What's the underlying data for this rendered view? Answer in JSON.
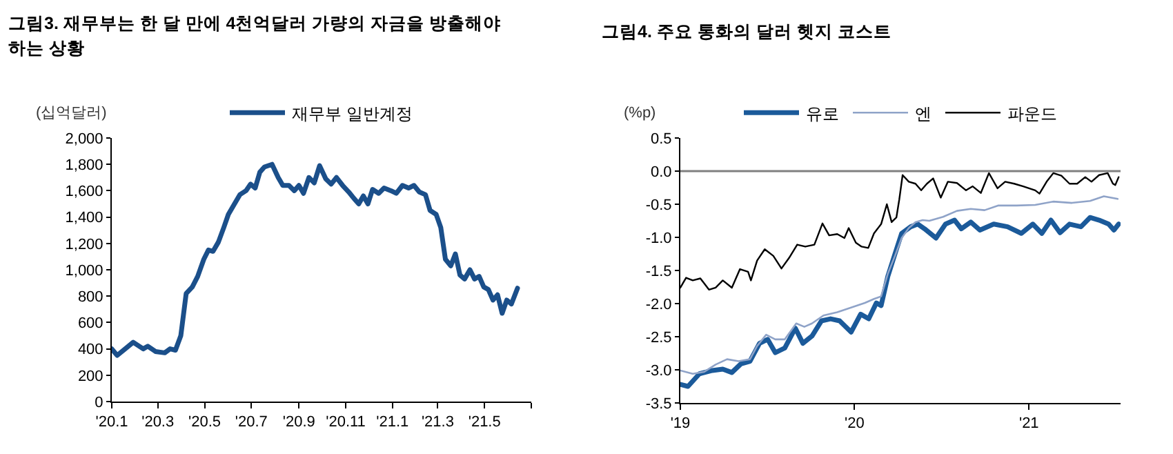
{
  "chart_data": [
    {
      "type": "line",
      "title": "그림3. 재무부는 한 달 만에 4천억달러 가량의 자금을 방출해야 하는 상황",
      "ylabel": "(십억달러)",
      "legend": "top",
      "grid": false,
      "marker": "none",
      "line_style": "solid",
      "xlim": [
        "2020-01-01",
        "2021-07-01"
      ],
      "xticks": [
        {
          "value": "2020-01-01",
          "label": "'20.1"
        },
        {
          "value": "2020-03-01",
          "label": "'20.3"
        },
        {
          "value": "2020-05-01",
          "label": "'20.5"
        },
        {
          "value": "2020-07-01",
          "label": "'20.7"
        },
        {
          "value": "2020-09-01",
          "label": "'20.9"
        },
        {
          "value": "2020-11-01",
          "label": "'20.11"
        },
        {
          "value": "2021-01-01",
          "label": "'21.1"
        },
        {
          "value": "2021-03-01",
          "label": "'21.3"
        },
        {
          "value": "2021-05-01",
          "label": "'21.5"
        },
        {
          "value": "2021-07-01",
          "label": null
        }
      ],
      "ylim": [
        0,
        2000
      ],
      "yticks": [
        0,
        200,
        400,
        600,
        800,
        {
          "value": 1000,
          "label": "1,000"
        },
        {
          "value": 1200,
          "label": "1,200"
        },
        {
          "value": 1400,
          "label": "1,400"
        },
        {
          "value": 1600,
          "label": "1,600"
        },
        {
          "value": 1800,
          "label": "1,800"
        },
        {
          "value": 2000,
          "label": "2,000"
        }
      ],
      "series": [
        {
          "name": "재무부 일반계정",
          "color": "#1b4f8a",
          "x": [
            "2020-01-01",
            "2020-01-08",
            "2020-01-29",
            "2020-02-11",
            "2020-02-17",
            "2020-02-27",
            "2020-03-10",
            "2020-03-17",
            "2020-03-24",
            "2020-03-31",
            "2020-04-07",
            "2020-04-15",
            "2020-04-22",
            "2020-04-30",
            "2020-05-06",
            "2020-05-12",
            "2020-05-19",
            "2020-05-26",
            "2020-06-01",
            "2020-06-09",
            "2020-06-16",
            "2020-06-24",
            "2020-06-30",
            "2020-07-06",
            "2020-07-12",
            "2020-07-18",
            "2020-07-28",
            "2020-08-05",
            "2020-08-11",
            "2020-08-19",
            "2020-08-26",
            "2020-09-01",
            "2020-09-07",
            "2020-09-14",
            "2020-09-21",
            "2020-09-28",
            "2020-10-06",
            "2020-10-13",
            "2020-10-20",
            "2020-10-28",
            "2020-11-05",
            "2020-11-12",
            "2020-11-18",
            "2020-11-24",
            "2020-11-30",
            "2020-12-06",
            "2020-12-14",
            "2020-12-21",
            "2020-12-30",
            "2021-01-06",
            "2021-01-14",
            "2021-01-22",
            "2021-01-29",
            "2021-02-05",
            "2021-02-13",
            "2021-02-19",
            "2021-02-27",
            "2021-03-05",
            "2021-03-11",
            "2021-03-18",
            "2021-03-24",
            "2021-03-30",
            "2021-04-05",
            "2021-04-12",
            "2021-04-18",
            "2021-04-24",
            "2021-04-30",
            "2021-05-06",
            "2021-05-12",
            "2021-05-18",
            "2021-05-24",
            "2021-05-30",
            "2021-06-05",
            "2021-06-13"
          ],
          "values": [
            400,
            350,
            450,
            400,
            420,
            380,
            370,
            400,
            390,
            500,
            820,
            870,
            950,
            1080,
            1150,
            1140,
            1210,
            1320,
            1420,
            1500,
            1570,
            1600,
            1650,
            1620,
            1740,
            1780,
            1800,
            1700,
            1640,
            1640,
            1600,
            1640,
            1580,
            1700,
            1660,
            1790,
            1690,
            1650,
            1700,
            1640,
            1590,
            1540,
            1500,
            1560,
            1500,
            1610,
            1580,
            1620,
            1600,
            1580,
            1640,
            1620,
            1640,
            1590,
            1570,
            1450,
            1420,
            1320,
            1080,
            1030,
            1120,
            960,
            930,
            1000,
            930,
            950,
            870,
            850,
            770,
            810,
            670,
            770,
            740,
            860
          ]
        }
      ]
    },
    {
      "type": "line",
      "title": "그림4. 주요 통화의 달러 헷지 코스트",
      "ylabel": "(%p)",
      "legend": "top",
      "grid": false,
      "marker": "none",
      "line_style": "solid",
      "xlim": [
        "2019-01-01",
        "2021-07-12"
      ],
      "xticks": [
        {
          "value": "2019-01-01",
          "label": "'19"
        },
        {
          "value": "2020-01-01",
          "label": "'20"
        },
        {
          "value": "2021-01-01",
          "label": "'21"
        }
      ],
      "ylim": [
        -3.5,
        0.5
      ],
      "yticks": [
        0.5,
        {
          "value": 0,
          "label": "0.0"
        },
        -0.5,
        {
          "value": -1,
          "label": "-1.0"
        },
        -1.5,
        {
          "value": -2,
          "label": "-2.0"
        },
        -2.5,
        {
          "value": -3,
          "label": "-3.0"
        },
        -3.5
      ],
      "ref_lines": [
        {
          "axis": "y",
          "value": 0,
          "color": "#808080"
        }
      ],
      "series": [
        {
          "name": "유로",
          "color": "#1b5a9a",
          "x": [
            "2019-01-01",
            "2019-01-17",
            "2019-02-10",
            "2019-03-09",
            "2019-03-31",
            "2019-04-19",
            "2019-05-08",
            "2019-05-27",
            "2019-06-16",
            "2019-07-03",
            "2019-07-19",
            "2019-08-08",
            "2019-08-30",
            "2019-09-15",
            "2019-10-04",
            "2019-10-24",
            "2019-11-12",
            "2019-12-01",
            "2019-12-25",
            "2020-01-14",
            "2020-01-31",
            "2020-02-16",
            "2020-02-26",
            "2020-03-11",
            "2020-03-26",
            "2020-04-09",
            "2020-04-28",
            "2020-05-13",
            "2020-05-27",
            "2020-06-20",
            "2020-07-10",
            "2020-07-29",
            "2020-08-12",
            "2020-09-01",
            "2020-09-20",
            "2020-10-19",
            "2020-11-17",
            "2020-12-16",
            "2021-01-09",
            "2021-01-28",
            "2021-02-16",
            "2021-03-07",
            "2021-03-27",
            "2021-04-20",
            "2021-05-09",
            "2021-05-28",
            "2021-06-17",
            "2021-06-28",
            "2021-07-08"
          ],
          "values": [
            -3.22,
            -3.25,
            -3.06,
            -3.01,
            -2.99,
            -3.04,
            -2.91,
            -2.87,
            -2.6,
            -2.54,
            -2.74,
            -2.67,
            -2.37,
            -2.6,
            -2.49,
            -2.26,
            -2.23,
            -2.26,
            -2.43,
            -2.16,
            -2.23,
            -1.99,
            -2.03,
            -1.59,
            -1.25,
            -0.94,
            -0.84,
            -0.8,
            -0.87,
            -1.01,
            -0.8,
            -0.74,
            -0.87,
            -0.77,
            -0.89,
            -0.8,
            -0.84,
            -0.94,
            -0.8,
            -0.94,
            -0.74,
            -0.93,
            -0.8,
            -0.84,
            -0.7,
            -0.74,
            -0.8,
            -0.89,
            -0.8
          ]
        },
        {
          "name": "엔",
          "color": "#8fa3c8",
          "x": [
            "2019-01-01",
            "2019-01-27",
            "2019-02-20",
            "2019-03-16",
            "2019-04-09",
            "2019-05-03",
            "2019-05-27",
            "2019-06-11",
            "2019-06-30",
            "2019-07-19",
            "2019-08-08",
            "2019-09-01",
            "2019-09-18",
            "2019-10-04",
            "2019-10-28",
            "2019-11-26",
            "2019-12-25",
            "2020-01-23",
            "2020-02-11",
            "2020-02-26",
            "2020-03-11",
            "2020-03-26",
            "2020-04-09",
            "2020-04-24",
            "2020-05-08",
            "2020-05-23",
            "2020-06-06",
            "2020-07-05",
            "2020-08-03",
            "2020-09-01",
            "2020-09-30",
            "2020-10-28",
            "2020-12-06",
            "2021-01-14",
            "2021-02-21",
            "2021-04-01",
            "2021-05-09",
            "2021-06-07",
            "2021-07-06"
          ],
          "values": [
            -3.01,
            -3.06,
            -3.03,
            -2.92,
            -2.84,
            -2.87,
            -2.84,
            -2.64,
            -2.47,
            -2.54,
            -2.54,
            -2.3,
            -2.35,
            -2.3,
            -2.18,
            -2.13,
            -2.06,
            -1.99,
            -1.93,
            -1.89,
            -1.55,
            -1.28,
            -1.01,
            -0.86,
            -0.77,
            -0.74,
            -0.75,
            -0.69,
            -0.6,
            -0.57,
            -0.59,
            -0.52,
            -0.52,
            -0.51,
            -0.46,
            -0.48,
            -0.45,
            -0.38,
            -0.42
          ]
        },
        {
          "name": "파운드",
          "color": "#000000",
          "x": [
            "2019-01-01",
            "2019-01-13",
            "2019-01-27",
            "2019-02-12",
            "2019-03-02",
            "2019-03-16",
            "2019-03-31",
            "2019-04-19",
            "2019-05-06",
            "2019-05-23",
            "2019-05-29",
            "2019-06-11",
            "2019-06-27",
            "2019-07-15",
            "2019-08-01",
            "2019-08-17",
            "2019-09-03",
            "2019-09-20",
            "2019-10-09",
            "2019-10-26",
            "2019-11-09",
            "2019-11-26",
            "2019-12-11",
            "2019-12-20",
            "2020-01-04",
            "2020-01-16",
            "2020-01-30",
            "2020-02-11",
            "2020-02-26",
            "2020-03-09",
            "2020-03-19",
            "2020-03-29",
            "2020-04-04",
            "2020-04-11",
            "2020-04-24",
            "2020-05-08",
            "2020-05-20",
            "2020-06-01",
            "2020-06-14",
            "2020-06-30",
            "2020-07-15",
            "2020-08-03",
            "2020-08-22",
            "2020-09-05",
            "2020-09-22",
            "2020-10-09",
            "2020-10-27",
            "2020-11-12",
            "2020-12-01",
            "2020-12-20",
            "2021-01-14",
            "2021-01-23",
            "2021-02-07",
            "2021-02-21",
            "2021-03-10",
            "2021-03-27",
            "2021-04-12",
            "2021-04-29",
            "2021-05-12",
            "2021-05-28",
            "2021-06-15",
            "2021-06-26",
            "2021-07-01",
            "2021-07-08"
          ],
          "values": [
            -1.76,
            -1.61,
            -1.65,
            -1.62,
            -1.79,
            -1.76,
            -1.65,
            -1.76,
            -1.48,
            -1.52,
            -1.65,
            -1.35,
            -1.18,
            -1.28,
            -1.47,
            -1.31,
            -1.11,
            -1.14,
            -1.11,
            -0.79,
            -0.97,
            -0.95,
            -1.01,
            -0.86,
            -1.08,
            -1.14,
            -1.16,
            -0.94,
            -0.8,
            -0.5,
            -0.77,
            -0.7,
            -0.43,
            -0.06,
            -0.16,
            -0.19,
            -0.29,
            -0.19,
            -0.11,
            -0.4,
            -0.16,
            -0.18,
            -0.29,
            -0.23,
            -0.33,
            -0.03,
            -0.26,
            -0.16,
            -0.19,
            -0.23,
            -0.29,
            -0.34,
            -0.16,
            -0.03,
            -0.07,
            -0.19,
            -0.19,
            -0.09,
            -0.16,
            -0.06,
            -0.03,
            -0.19,
            -0.21,
            -0.09
          ]
        }
      ]
    }
  ]
}
